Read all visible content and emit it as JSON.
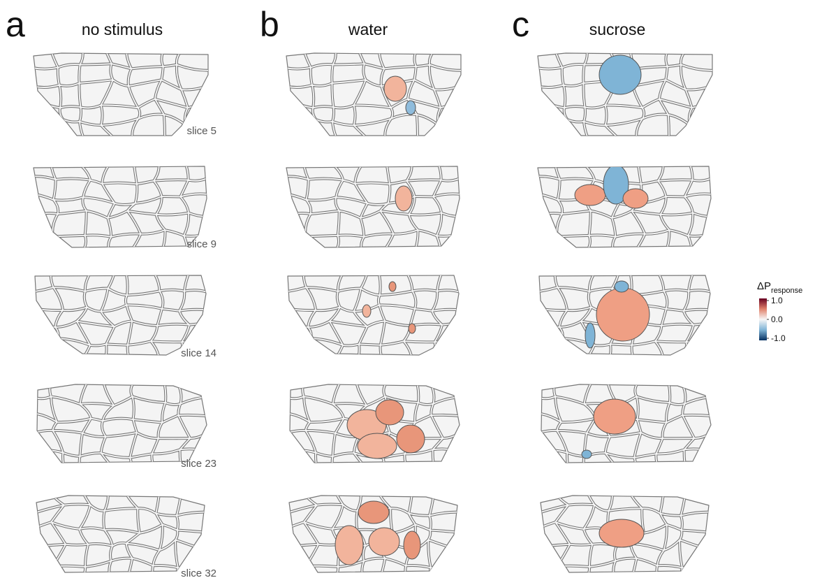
{
  "panels": [
    {
      "letter": "a",
      "title": "no stimulus"
    },
    {
      "letter": "b",
      "title": "water"
    },
    {
      "letter": "c",
      "title": "sucrose"
    }
  ],
  "slices": [
    "slice 5",
    "slice 9",
    "slice 14",
    "slice 23",
    "slice 32"
  ],
  "colorbar": {
    "label": "ΔP",
    "label_subscript": "response",
    "ticks": [
      {
        "value": 1.0,
        "label": "1.0"
      },
      {
        "value": 0.0,
        "label": "0.0"
      },
      {
        "value": -1.0,
        "label": "-1.0"
      }
    ]
  }
}
